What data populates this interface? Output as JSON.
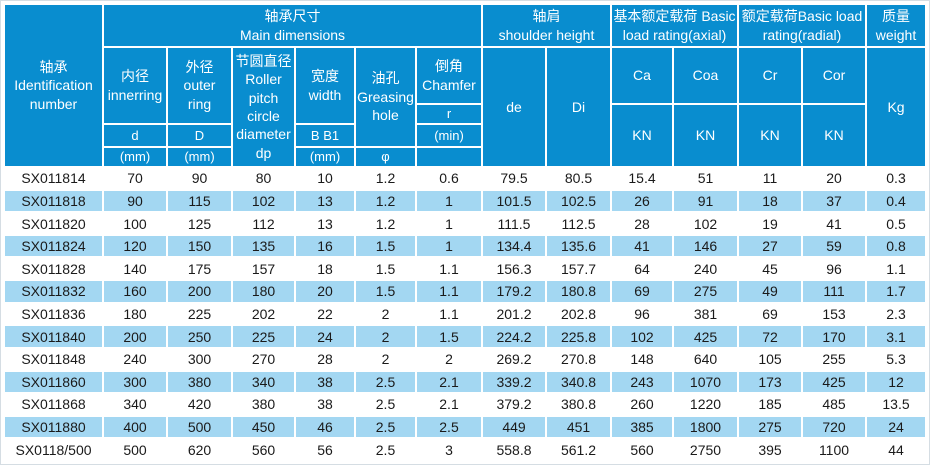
{
  "colors": {
    "header_blue": "#098dcf",
    "row_alt_blue": "#a3d7f2",
    "row_base": "#ffffff",
    "text_dark": "#1a1a1a"
  },
  "table": {
    "header": {
      "identification": "轴承\nIdentification\nnumber",
      "main_dimensions": "轴承尺寸\nMain dimensions",
      "shoulder_height": "轴肩\nshoulder height",
      "load_axial": "基本额定载荷 Basic\nload rating(axial)",
      "load_radial": "额定载荷Basic load\nrating(radial)",
      "weight": "质量\nweight",
      "inner_ring": "内径\ninnerring",
      "inner_symbol": "d",
      "inner_unit": "(mm)",
      "outer_ring": "外径\nouter\nring",
      "outer_symbol": "D",
      "outer_unit": "(mm)",
      "pitch_circle": "节圆直径\nRoller\npitch\ncircle\ndiameter\ndp",
      "width": "宽度\nwidth",
      "width_symbol": "B  B1",
      "width_unit": "(mm)",
      "greasing_hole": "油孔\nGreasing\nhole",
      "greasing_symbol": "φ",
      "chamfer": "倒角\nChamfer",
      "chamfer_symbol": "r",
      "chamfer_unit": "(min)",
      "de": "de",
      "di": "Di",
      "ca": "Ca",
      "coa": "Coa",
      "cr": "Cr",
      "cor": "Cor",
      "kn": "KN",
      "kg": "Kg"
    },
    "columns": [
      "Identification number",
      "d (mm)",
      "D (mm)",
      "dp (mm)",
      "B B1 (mm)",
      "Greasing hole φ",
      "Chamfer r (min)",
      "de",
      "Di",
      "Ca KN",
      "Coa KN",
      "Cr KN",
      "Cor KN",
      "weight Kg"
    ],
    "rows": [
      [
        "SX011814",
        "70",
        "90",
        "80",
        "10",
        "1.2",
        "0.6",
        "79.5",
        "80.5",
        "15.4",
        "51",
        "11",
        "20",
        "0.3"
      ],
      [
        "SX011818",
        "90",
        "115",
        "102",
        "13",
        "1.2",
        "1",
        "101.5",
        "102.5",
        "26",
        "91",
        "18",
        "37",
        "0.4"
      ],
      [
        "SX011820",
        "100",
        "125",
        "112",
        "13",
        "1.2",
        "1",
        "111.5",
        "112.5",
        "28",
        "102",
        "19",
        "41",
        "0.5"
      ],
      [
        "SX011824",
        "120",
        "150",
        "135",
        "16",
        "1.5",
        "1",
        "134.4",
        "135.6",
        "41",
        "146",
        "27",
        "59",
        "0.8"
      ],
      [
        "SX011828",
        "140",
        "175",
        "157",
        "18",
        "1.5",
        "1.1",
        "156.3",
        "157.7",
        "64",
        "240",
        "45",
        "96",
        "1.1"
      ],
      [
        "SX011832",
        "160",
        "200",
        "180",
        "20",
        "1.5",
        "1.1",
        "179.2",
        "180.8",
        "69",
        "275",
        "49",
        "111",
        "1.7"
      ],
      [
        "SX011836",
        "180",
        "225",
        "202",
        "22",
        "2",
        "1.1",
        "201.2",
        "202.8",
        "96",
        "381",
        "69",
        "153",
        "2.3"
      ],
      [
        "SX011840",
        "200",
        "250",
        "225",
        "24",
        "2",
        "1.5",
        "224.2",
        "225.8",
        "102",
        "425",
        "72",
        "170",
        "3.1"
      ],
      [
        "SX011848",
        "240",
        "300",
        "270",
        "28",
        "2",
        "2",
        "269.2",
        "270.8",
        "148",
        "640",
        "105",
        "255",
        "5.3"
      ],
      [
        "SX011860",
        "300",
        "380",
        "340",
        "38",
        "2.5",
        "2.1",
        "339.2",
        "340.8",
        "243",
        "1070",
        "173",
        "425",
        "12"
      ],
      [
        "SX011868",
        "340",
        "420",
        "380",
        "38",
        "2.5",
        "2.1",
        "379.2",
        "380.8",
        "260",
        "1220",
        "185",
        "485",
        "13.5"
      ],
      [
        "SX011880",
        "400",
        "500",
        "450",
        "46",
        "2.5",
        "2.5",
        "449",
        "451",
        "385",
        "1800",
        "275",
        "720",
        "24"
      ],
      [
        "SX0118/500",
        "500",
        "620",
        "560",
        "56",
        "2.5",
        "3",
        "558.8",
        "561.2",
        "560",
        "2750",
        "395",
        "1100",
        "44"
      ]
    ]
  }
}
